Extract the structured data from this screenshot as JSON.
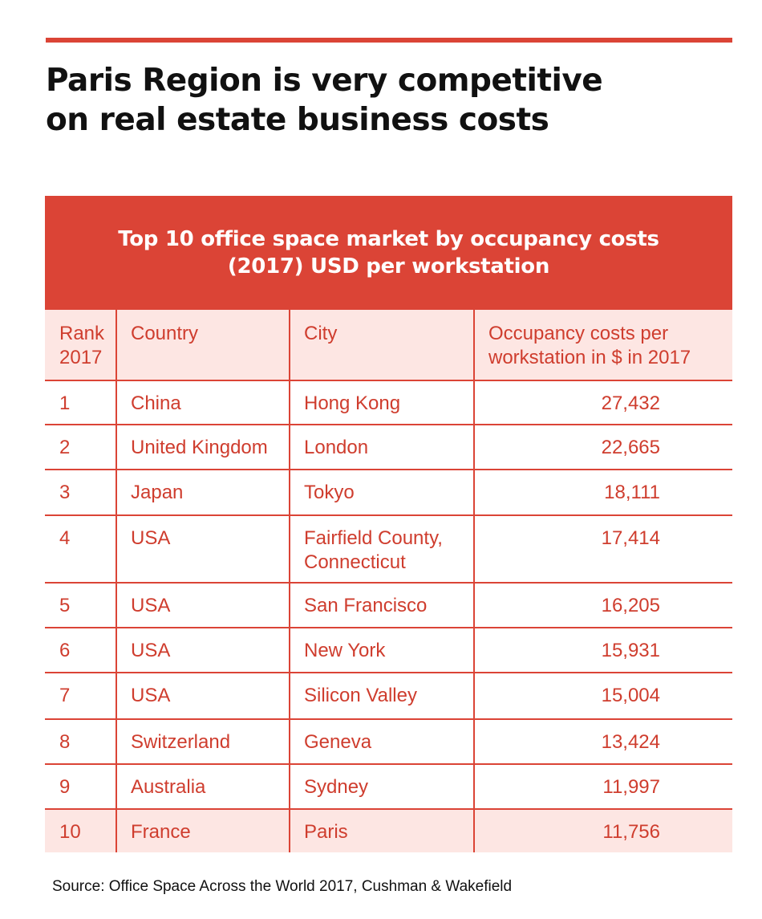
{
  "headline": {
    "line1": "Paris Region is very competitive",
    "line2": "on real estate business costs"
  },
  "table": {
    "title_line1": "Top 10 office space market by occupancy costs",
    "title_line2": "(2017) USD per workstation",
    "columns": {
      "rank_line1": "Rank",
      "rank_line2": "2017",
      "country": "Country",
      "city": "City",
      "cost_line1": "Occupancy costs per",
      "cost_line2": "workstation in $ in 2017"
    },
    "rows": [
      {
        "rank": "1",
        "country": "China",
        "city_line1": "Hong Kong",
        "city_line2": "",
        "cost": "27,432"
      },
      {
        "rank": "2",
        "country": "United Kingdom",
        "city_line1": "London",
        "city_line2": "",
        "cost": "22,665"
      },
      {
        "rank": "3",
        "country": "Japan",
        "city_line1": "Tokyo",
        "city_line2": "",
        "cost": "18,111"
      },
      {
        "rank": "4",
        "country": "USA",
        "city_line1": "Fairfield County,",
        "city_line2": "Connecticut",
        "cost": "17,414"
      },
      {
        "rank": "5",
        "country": "USA",
        "city_line1": "San Francisco",
        "city_line2": "",
        "cost": "16,205"
      },
      {
        "rank": "6",
        "country": "USA",
        "city_line1": "New York",
        "city_line2": "",
        "cost": "15,931"
      },
      {
        "rank": "7",
        "country": "USA",
        "city_line1": "Silicon Valley",
        "city_line2": "",
        "cost": "15,004"
      },
      {
        "rank": "8",
        "country": "Switzerland",
        "city_line1": "Geneva",
        "city_line2": "",
        "cost": "13,424"
      },
      {
        "rank": "9",
        "country": "Australia",
        "city_line1": "Sydney",
        "city_line2": "",
        "cost": "11,997"
      },
      {
        "rank": "10",
        "country": "France",
        "city_line1": "Paris",
        "city_line2": "",
        "cost": "11,756"
      }
    ]
  },
  "source": "Source: Office Space Across the World 2017, Cushman & Wakefield",
  "colors": {
    "accent": "#db4436",
    "table_text": "#cf3d2e",
    "row_tint": "#fde6e3"
  }
}
